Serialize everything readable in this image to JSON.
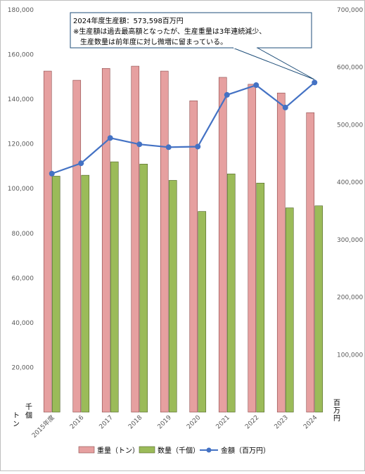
{
  "chart_data": {
    "type": "bar",
    "categories": [
      "2015年度",
      "2016",
      "2017",
      "2018",
      "2019",
      "2020",
      "2021",
      "2022",
      "2023",
      "2024"
    ],
    "series": [
      {
        "name": "重量（トン）",
        "type": "bar",
        "axis": "left",
        "color": "#e6a0a0",
        "values": [
          152600,
          148500,
          153800,
          154800,
          152600,
          139300,
          149800,
          146700,
          142800,
          134000
        ]
      },
      {
        "name": "数量（千個）",
        "type": "bar",
        "axis": "left",
        "color": "#9bbb59",
        "values": [
          105600,
          106000,
          112000,
          111000,
          103700,
          89800,
          106600,
          102500,
          91400,
          92300
        ]
      },
      {
        "name": "金額（百万円）",
        "type": "line",
        "axis": "right",
        "color": "#4472c4",
        "values": [
          415000,
          433000,
          477000,
          466000,
          461000,
          462000,
          552000,
          569000,
          530000,
          573598
        ]
      }
    ],
    "y_left": {
      "range": [
        0,
        180000
      ],
      "ticks": [
        0,
        20000,
        40000,
        60000,
        80000,
        100000,
        120000,
        140000,
        160000,
        180000
      ],
      "tick_labels": [
        "",
        "20,000",
        "40,000",
        "60,000",
        "80,000",
        "100,000",
        "120,000",
        "140,000",
        "160,000",
        "180,000"
      ],
      "unit_1": "トン",
      "unit_2": "千個"
    },
    "y_right": {
      "range": [
        0,
        700000
      ],
      "ticks": [
        0,
        100000,
        200000,
        300000,
        400000,
        500000,
        600000,
        700000
      ],
      "tick_labels": [
        "",
        "100,000",
        "200,000",
        "300,000",
        "400,000",
        "500,000",
        "600,000",
        "700,000"
      ],
      "unit": "百万円"
    },
    "annotation": {
      "lines": [
        "2024年度生産額：573,598百万円",
        "※生産額は過去最高額となったが、生産重量は3年連続減少、",
        "　生産数量は前年度に対し微増に留まっている。"
      ]
    },
    "legend": {
      "position": "bottom",
      "items": [
        "重量（トン）",
        "数量（千個）",
        "金額（百万円）"
      ]
    },
    "grid": false
  }
}
